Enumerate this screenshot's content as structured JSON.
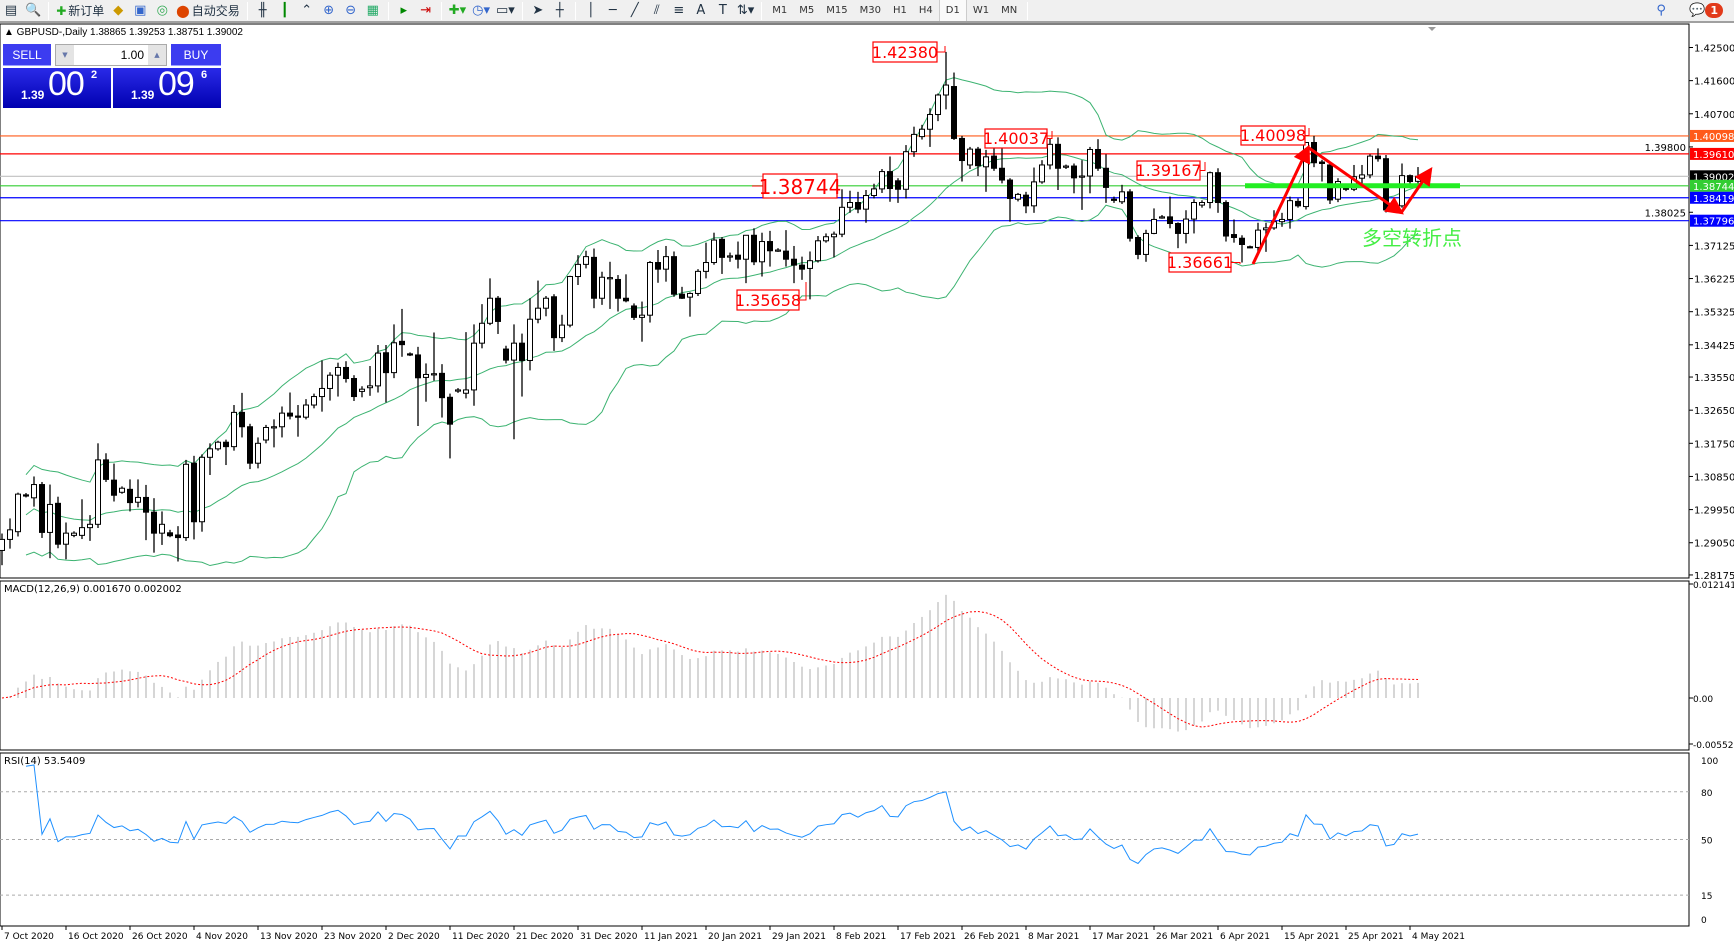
{
  "toolbar": {
    "new_order_label": "新订单",
    "auto_trading_label": "自动交易",
    "timeframes": [
      "M1",
      "M5",
      "M15",
      "M30",
      "H1",
      "H4",
      "D1",
      "W1",
      "MN"
    ],
    "active_timeframe": "D1",
    "notification_count": "1"
  },
  "chart_info": "▲ GBPUSD-,Daily  1.38865 1.39253 1.38751 1.39002",
  "one_click": {
    "sell_label": "SELL",
    "buy_label": "BUY",
    "lot": "1.00",
    "sell": {
      "prefix": "1.39",
      "big": "00",
      "sup": "2"
    },
    "buy": {
      "prefix": "1.39",
      "big": "09",
      "sup": "6"
    }
  },
  "main": {
    "symbol": "GBPUSD-",
    "period": "Daily",
    "price_ticks": [
      "1.42500",
      "1.41600",
      "1.40700",
      "1.39800",
      "1.38025",
      "1.37125",
      "1.36225",
      "1.35325",
      "1.34425",
      "1.33550",
      "1.32650",
      "1.31750",
      "1.30850",
      "1.29950",
      "1.29050",
      "1.28175"
    ],
    "levels": [
      {
        "price": "1.40098",
        "color": "#ff5a1a"
      },
      {
        "price": "1.39610",
        "color": "#ff0000"
      },
      {
        "price": "1.39002",
        "color": "#c0c0c0",
        "label_bg": "#000000"
      },
      {
        "price": "1.38744",
        "color": "#32cd32"
      },
      {
        "price": "1.38419",
        "color": "#0000ff"
      },
      {
        "price": "1.37796",
        "color": "#0000ff"
      }
    ],
    "annotations": [
      "1.42380",
      "1.40037",
      "1.39167",
      "1.38744",
      "1.35658",
      "1.36661",
      "1.40098"
    ],
    "note": "多空转折点",
    "colors": {
      "bands": "#3cb371",
      "arrows": "#ff0000",
      "support_bar": "#22ee22",
      "note": "#44ee44"
    },
    "candles": [
      [
        1.2884,
        1.293,
        1.2844,
        1.2914
      ],
      [
        1.2914,
        1.2971,
        1.2889,
        1.294
      ],
      [
        1.2935,
        1.3041,
        1.2922,
        1.3037
      ],
      [
        1.3035,
        1.304,
        1.3028,
        1.3032
      ],
      [
        1.3027,
        1.3085,
        1.3003,
        1.3063
      ],
      [
        1.3063,
        1.307,
        1.2918,
        1.2933
      ],
      [
        1.2933,
        1.3063,
        1.2863,
        1.3009
      ],
      [
        1.3012,
        1.303,
        1.289,
        1.2901
      ],
      [
        1.2901,
        1.296,
        1.286,
        1.2931
      ],
      [
        1.2925,
        1.2936,
        1.292,
        1.2931
      ],
      [
        1.2925,
        1.3023,
        1.2915,
        1.2946
      ],
      [
        1.2946,
        1.298,
        1.291,
        1.2955
      ],
      [
        1.2955,
        1.3175,
        1.2945,
        1.313
      ],
      [
        1.313,
        1.3148,
        1.307,
        1.3077
      ],
      [
        1.3075,
        1.312,
        1.3017,
        1.3034
      ],
      [
        1.3042,
        1.3058,
        1.3038,
        1.3053
      ],
      [
        1.305,
        1.3077,
        1.299,
        1.3014
      ],
      [
        1.3015,
        1.3077,
        1.3001,
        1.3028
      ],
      [
        1.3028,
        1.3062,
        1.2912,
        1.2988
      ],
      [
        1.2988,
        1.3026,
        1.2878,
        1.2931
      ],
      [
        1.2931,
        1.299,
        1.2899,
        1.2955
      ],
      [
        1.2932,
        1.294,
        1.292,
        1.2924
      ],
      [
        1.2926,
        1.295,
        1.2854,
        1.2919
      ],
      [
        1.2919,
        1.313,
        1.291,
        1.3118
      ],
      [
        1.3121,
        1.3141,
        1.2914,
        1.2962
      ],
      [
        1.2962,
        1.3145,
        1.2935,
        1.3137
      ],
      [
        1.3137,
        1.3175,
        1.3089,
        1.316
      ],
      [
        1.316,
        1.3182,
        1.3155,
        1.3178
      ],
      [
        1.3178,
        1.3185,
        1.3116,
        1.3166
      ],
      [
        1.3166,
        1.3279,
        1.3155,
        1.3259
      ],
      [
        1.3259,
        1.3312,
        1.3191,
        1.322
      ],
      [
        1.322,
        1.3228,
        1.3105,
        1.3121
      ],
      [
        1.3121,
        1.3191,
        1.3107,
        1.3175
      ],
      [
        1.3184,
        1.3225,
        1.3175,
        1.3218
      ],
      [
        1.3218,
        1.324,
        1.3164,
        1.322
      ],
      [
        1.322,
        1.3275,
        1.3191,
        1.3257
      ],
      [
        1.3257,
        1.3313,
        1.324,
        1.3249
      ],
      [
        1.3249,
        1.3279,
        1.3193,
        1.3246
      ],
      [
        1.3246,
        1.3295,
        1.324,
        1.3279
      ],
      [
        1.3279,
        1.331,
        1.327,
        1.3302
      ],
      [
        1.3302,
        1.34,
        1.3261,
        1.3324
      ],
      [
        1.3324,
        1.3368,
        1.3291,
        1.336
      ],
      [
        1.336,
        1.3394,
        1.3302,
        1.3381
      ],
      [
        1.3381,
        1.3398,
        1.334,
        1.3351
      ],
      [
        1.3351,
        1.336,
        1.329,
        1.3302
      ],
      [
        1.3316,
        1.333,
        1.33,
        1.3322
      ],
      [
        1.3326,
        1.3385,
        1.3304,
        1.3331
      ],
      [
        1.3331,
        1.3442,
        1.3313,
        1.342
      ],
      [
        1.3421,
        1.3442,
        1.3286,
        1.3367
      ],
      [
        1.3367,
        1.3498,
        1.3352,
        1.3448
      ],
      [
        1.3452,
        1.354,
        1.341,
        1.3443
      ],
      [
        1.3418,
        1.3422,
        1.3412,
        1.3417
      ],
      [
        1.3415,
        1.3437,
        1.3222,
        1.3353
      ],
      [
        1.3354,
        1.3392,
        1.3288,
        1.3362
      ],
      [
        1.3362,
        1.3476,
        1.3345,
        1.3364
      ],
      [
        1.3365,
        1.339,
        1.3245,
        1.3299
      ],
      [
        1.33,
        1.331,
        1.3134,
        1.3227
      ],
      [
        1.332,
        1.3325,
        1.3312,
        1.332
      ],
      [
        1.3311,
        1.3477,
        1.3297,
        1.332
      ],
      [
        1.332,
        1.3498,
        1.3277,
        1.3447
      ],
      [
        1.3447,
        1.3553,
        1.3433,
        1.3501
      ],
      [
        1.3501,
        1.3623,
        1.3496,
        1.3569
      ],
      [
        1.3569,
        1.3575,
        1.3472,
        1.3506
      ],
      [
        1.3431,
        1.344,
        1.3392,
        1.3401
      ],
      [
        1.3401,
        1.3498,
        1.3186,
        1.3447
      ],
      [
        1.3447,
        1.3473,
        1.3302,
        1.34
      ],
      [
        1.34,
        1.3569,
        1.3373,
        1.3512
      ],
      [
        1.3512,
        1.3617,
        1.3501,
        1.3542
      ],
      [
        1.3542,
        1.3575,
        1.352,
        1.3569
      ],
      [
        1.3573,
        1.358,
        1.3426,
        1.3462
      ],
      [
        1.3462,
        1.3524,
        1.345,
        1.3496
      ],
      [
        1.3496,
        1.363,
        1.349,
        1.3628
      ],
      [
        1.3628,
        1.3686,
        1.3605,
        1.3661
      ],
      [
        1.3661,
        1.3698,
        1.365,
        1.3682
      ],
      [
        1.368,
        1.3704,
        1.3542,
        1.3569
      ],
      [
        1.3569,
        1.3641,
        1.3551,
        1.3626
      ],
      [
        1.3625,
        1.3668,
        1.354,
        1.3625
      ],
      [
        1.362,
        1.3632,
        1.3533,
        1.3569
      ],
      [
        1.3569,
        1.3634,
        1.3558,
        1.3562
      ],
      [
        1.3548,
        1.3555,
        1.351,
        1.3517
      ],
      [
        1.3517,
        1.356,
        1.3451,
        1.3523
      ],
      [
        1.3523,
        1.367,
        1.3503,
        1.3666
      ],
      [
        1.3666,
        1.37,
        1.3611,
        1.3648
      ],
      [
        1.3648,
        1.3711,
        1.3614,
        1.3682
      ],
      [
        1.3682,
        1.3696,
        1.3573,
        1.358
      ],
      [
        1.358,
        1.36,
        1.3567,
        1.3569
      ],
      [
        1.3572,
        1.3585,
        1.3519,
        1.3582
      ],
      [
        1.3582,
        1.3648,
        1.3575,
        1.3642
      ],
      [
        1.3642,
        1.372,
        1.3623,
        1.3666
      ],
      [
        1.3666,
        1.3747,
        1.366,
        1.3727
      ],
      [
        1.3729,
        1.3735,
        1.3635,
        1.368
      ],
      [
        1.3682,
        1.3693,
        1.3668,
        1.3684
      ],
      [
        1.3686,
        1.3723,
        1.365,
        1.3675
      ],
      [
        1.3675,
        1.374,
        1.361,
        1.374
      ],
      [
        1.374,
        1.3759,
        1.3659,
        1.3668
      ],
      [
        1.3668,
        1.3747,
        1.3628,
        1.3723
      ],
      [
        1.3723,
        1.3752,
        1.3655,
        1.3698
      ],
      [
        1.37,
        1.3705,
        1.3695,
        1.37
      ],
      [
        1.3697,
        1.3754,
        1.3655,
        1.3675
      ],
      [
        1.3675,
        1.3711,
        1.361,
        1.3659
      ],
      [
        1.3659,
        1.3682,
        1.3619,
        1.3648
      ],
      [
        1.365,
        1.3696,
        1.3566,
        1.3671
      ],
      [
        1.3671,
        1.3738,
        1.3666,
        1.3725
      ],
      [
        1.3725,
        1.3745,
        1.372,
        1.3736
      ],
      [
        1.3736,
        1.375,
        1.368,
        1.3743
      ],
      [
        1.3743,
        1.3865,
        1.3735,
        1.3816
      ],
      [
        1.3816,
        1.3861,
        1.3801,
        1.3829
      ],
      [
        1.3829,
        1.3858,
        1.38,
        1.3811
      ],
      [
        1.3811,
        1.3863,
        1.3774,
        1.3848
      ],
      [
        1.3848,
        1.388,
        1.384,
        1.3866
      ],
      [
        1.3866,
        1.392,
        1.3855,
        1.3913
      ],
      [
        1.3913,
        1.3954,
        1.3831,
        1.3867
      ],
      [
        1.3888,
        1.3895,
        1.3828,
        1.3865
      ],
      [
        1.3865,
        1.3985,
        1.384,
        1.3967
      ],
      [
        1.3967,
        1.4035,
        1.3953,
        1.4014
      ],
      [
        1.4008,
        1.404,
        1.4,
        1.4028
      ],
      [
        1.4028,
        1.4085,
        1.398,
        1.4068
      ],
      [
        1.4068,
        1.4125,
        1.405,
        1.4121
      ],
      [
        1.4121,
        1.4238,
        1.4082,
        1.4148
      ],
      [
        1.4144,
        1.4182,
        1.3999,
        1.4003
      ],
      [
        1.4003,
        1.401,
        1.3886,
        1.3943
      ],
      [
        1.3931,
        1.398,
        1.392,
        1.3974
      ],
      [
        1.3974,
        1.398,
        1.3901,
        1.3929
      ],
      [
        1.3926,
        1.3972,
        1.3858,
        1.3953
      ],
      [
        1.3955,
        1.4008,
        1.3915,
        1.3922
      ],
      [
        1.3922,
        1.3985,
        1.3881,
        1.389
      ],
      [
        1.389,
        1.3895,
        1.3777,
        1.384
      ],
      [
        1.3838,
        1.3855,
        1.3832,
        1.3851
      ],
      [
        1.3849,
        1.3858,
        1.38,
        1.382
      ],
      [
        1.382,
        1.3924,
        1.3801,
        1.3885
      ],
      [
        1.3885,
        1.3944,
        1.388,
        1.3931
      ],
      [
        1.3931,
        1.4003,
        1.3919,
        1.3987
      ],
      [
        1.3987,
        1.4006,
        1.3863,
        1.3922
      ],
      [
        1.3925,
        1.3932,
        1.392,
        1.3928
      ],
      [
        1.3928,
        1.3935,
        1.3854,
        1.3896
      ],
      [
        1.39,
        1.3944,
        1.3809,
        1.3901
      ],
      [
        1.3901,
        1.398,
        1.3854,
        1.3973
      ],
      [
        1.3973,
        1.4001,
        1.3915,
        1.3922
      ],
      [
        1.3922,
        1.396,
        1.3828,
        1.387
      ],
      [
        1.3838,
        1.3845,
        1.3828,
        1.3836
      ],
      [
        1.3831,
        1.3877,
        1.3825,
        1.3858
      ],
      [
        1.3858,
        1.3865,
        1.3723,
        1.3732
      ],
      [
        1.3734,
        1.374,
        1.3675,
        1.3688
      ],
      [
        1.3688,
        1.3755,
        1.3668,
        1.3745
      ],
      [
        1.3745,
        1.3813,
        1.3743,
        1.3783
      ],
      [
        1.3788,
        1.3795,
        1.3785,
        1.379
      ],
      [
        1.379,
        1.3845,
        1.3759,
        1.3772
      ],
      [
        1.3772,
        1.3775,
        1.3705,
        1.3745
      ],
      [
        1.3745,
        1.3808,
        1.3718,
        1.3784
      ],
      [
        1.3784,
        1.3838,
        1.3745,
        1.3829
      ],
      [
        1.3822,
        1.3835,
        1.3815,
        1.3829
      ],
      [
        1.3829,
        1.3913,
        1.3813,
        1.391
      ],
      [
        1.391,
        1.3922,
        1.3801,
        1.3829
      ],
      [
        1.3829,
        1.3835,
        1.3723,
        1.3738
      ],
      [
        1.3742,
        1.3783,
        1.372,
        1.3734
      ],
      [
        1.3732,
        1.374,
        1.3666,
        1.3715
      ],
      [
        1.3709,
        1.3712,
        1.3705,
        1.3707
      ],
      [
        1.3707,
        1.3774,
        1.3691,
        1.3754
      ],
      [
        1.3755,
        1.3774,
        1.3695,
        1.376
      ],
      [
        1.376,
        1.3808,
        1.3755,
        1.3777
      ],
      [
        1.3777,
        1.3801,
        1.3763,
        1.3783
      ],
      [
        1.3783,
        1.3845,
        1.3758,
        1.3834
      ],
      [
        1.3832,
        1.384,
        1.3815,
        1.382
      ],
      [
        1.3818,
        1.3993,
        1.381,
        1.3992
      ],
      [
        1.3992,
        1.401,
        1.3925,
        1.3937
      ],
      [
        1.3939,
        1.3945,
        1.3886,
        1.3935
      ],
      [
        1.3931,
        1.3935,
        1.3825,
        1.3836
      ],
      [
        1.3838,
        1.3895,
        1.383,
        1.3886
      ],
      [
        1.3868,
        1.3872,
        1.386,
        1.3865
      ],
      [
        1.3865,
        1.3931,
        1.386,
        1.3899
      ],
      [
        1.3895,
        1.3931,
        1.388,
        1.3904
      ],
      [
        1.3904,
        1.396,
        1.3895,
        1.3955
      ],
      [
        1.3955,
        1.3976,
        1.394,
        1.3948
      ],
      [
        1.3948,
        1.3958,
        1.3802,
        1.3809
      ],
      [
        1.3818,
        1.383,
        1.381,
        1.382
      ],
      [
        1.382,
        1.3935,
        1.3815,
        1.3902
      ],
      [
        1.3902,
        1.3905,
        1.388,
        1.3886
      ],
      [
        1.38865,
        1.39253,
        1.38751,
        1.39002
      ]
    ]
  },
  "macd": {
    "label": "MACD(12,26,9) 0.001670 0.002002",
    "scale": [
      "0.012141",
      "0.00",
      "-0.005523"
    ],
    "histogram_color": "#c0c0c0",
    "signal_color": "#ff0000"
  },
  "rsi": {
    "label": "RSI(14) 53.5409",
    "scale": [
      "100",
      "80",
      "50",
      "15",
      "0"
    ],
    "color": "#1e90ff"
  },
  "dates": [
    "7 Oct 2020",
    "16 Oct 2020",
    "26 Oct 2020",
    "4 Nov 2020",
    "13 Nov 2020",
    "23 Nov 2020",
    "2 Dec 2020",
    "11 Dec 2020",
    "21 Dec 2020",
    "31 Dec 2020",
    "11 Jan 2021",
    "20 Jan 2021",
    "29 Jan 2021",
    "8 Feb 2021",
    "17 Feb 2021",
    "26 Feb 2021",
    "8 Mar 2021",
    "17 Mar 2021",
    "26 Mar 2021",
    "6 Apr 2021",
    "15 Apr 2021",
    "25 Apr 2021",
    "4 May 2021"
  ]
}
